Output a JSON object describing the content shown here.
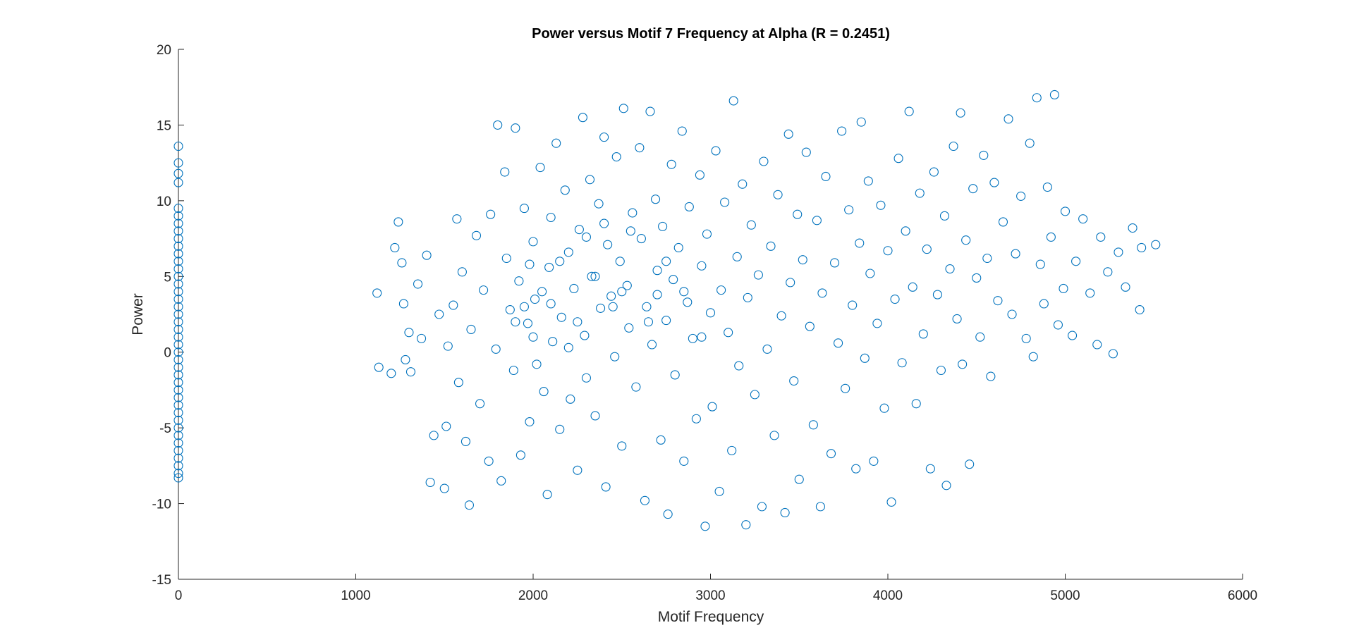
{
  "chart_data": {
    "type": "scatter",
    "title": "Power versus Motif 7 Frequency at Alpha (R = 0.2451)",
    "xlabel": "Motif Frequency",
    "ylabel": "Power",
    "color": "#0072bd",
    "xlim": [
      0,
      6000
    ],
    "ylim": [
      -15,
      20
    ],
    "xticks": [
      0,
      1000,
      2000,
      3000,
      4000,
      5000,
      6000
    ],
    "yticks": [
      -15,
      -10,
      -5,
      0,
      5,
      10,
      15,
      20
    ],
    "x": [
      0,
      0,
      0,
      0,
      0,
      0,
      0,
      0,
      0,
      0,
      0,
      0,
      0,
      0,
      0,
      0,
      0,
      0,
      0,
      0,
      0,
      0,
      0,
      0,
      0,
      0,
      0,
      0,
      0,
      0,
      0,
      0,
      0,
      0,
      0,
      0,
      0,
      0,
      0,
      0,
      0,
      1120,
      1130,
      1200,
      1220,
      1240,
      1260,
      1270,
      1280,
      1300,
      1310,
      1350,
      1370,
      1400,
      1420,
      1440,
      1470,
      1500,
      1510,
      1520,
      1550,
      1570,
      1580,
      1600,
      1620,
      1640,
      1650,
      1680,
      1700,
      1720,
      1750,
      1760,
      1790,
      1800,
      1820,
      1840,
      1850,
      1870,
      1890,
      1900,
      1920,
      1930,
      1950,
      1970,
      1980,
      2000,
      2010,
      2020,
      2040,
      2060,
      2080,
      2090,
      2100,
      2110,
      2130,
      2150,
      2160,
      2180,
      2200,
      2210,
      2230,
      2250,
      2260,
      2280,
      2290,
      2300,
      2320,
      2330,
      2350,
      2370,
      2380,
      2400,
      2410,
      2420,
      2440,
      2460,
      2470,
      2490,
      2500,
      2510,
      2530,
      2540,
      2560,
      2580,
      2600,
      2610,
      2630,
      2640,
      2660,
      2670,
      2690,
      2700,
      2720,
      2730,
      2750,
      2760,
      2780,
      2790,
      2800,
      2820,
      2840,
      2850,
      2870,
      2880,
      2900,
      2920,
      2940,
      2950,
      2970,
      2980,
      3000,
      3010,
      3030,
      3050,
      3060,
      3080,
      3100,
      3120,
      3130,
      3150,
      3160,
      3180,
      3200,
      3210,
      3230,
      3250,
      3270,
      3290,
      3300,
      3320,
      3340,
      3360,
      3380,
      3400,
      3420,
      3440,
      3450,
      3470,
      3490,
      3500,
      3520,
      3540,
      3560,
      3580,
      3600,
      3620,
      3630,
      3650,
      3680,
      3700,
      3720,
      3740,
      3760,
      3780,
      3800,
      3820,
      3840,
      3850,
      3870,
      3890,
      3900,
      3920,
      3940,
      3960,
      3980,
      4000,
      4020,
      4040,
      4060,
      4080,
      4100,
      4120,
      4140,
      4160,
      4180,
      4200,
      4220,
      4240,
      4260,
      4280,
      4300,
      4320,
      4330,
      4350,
      4370,
      4390,
      4410,
      4420,
      4440,
      4460,
      4480,
      4500,
      4520,
      4540,
      4560,
      4580,
      4600,
      4620,
      4650,
      4680,
      4700,
      4720,
      4750,
      4780,
      4800,
      4820,
      4840,
      4860,
      4880,
      4900,
      4920,
      4940,
      4960,
      4990,
      5000,
      5040,
      5060,
      5100,
      5140,
      5180,
      5200,
      5240,
      5270,
      5300,
      5340,
      5380,
      5420,
      5430,
      5510,
      1950,
      2000,
      2050,
      2150,
      2250,
      2350,
      2450,
      2550,
      2650,
      2750,
      2850,
      2950,
      1900,
      2100,
      2300,
      2500,
      2700,
      2400,
      2200,
      1980
    ],
    "y": [
      13.6,
      12.5,
      11.8,
      11.2,
      9.5,
      9,
      8.5,
      8,
      7.5,
      7,
      6.5,
      6,
      5.5,
      5,
      4.5,
      4,
      3.5,
      3,
      2.5,
      2,
      1.5,
      1,
      0.5,
      0,
      -0.5,
      -1,
      -1.5,
      -2,
      -2.5,
      -3,
      -3.5,
      -4,
      -4.5,
      -5,
      -5.5,
      -6,
      -6.5,
      -7,
      -7.5,
      -8,
      -8.3,
      3.9,
      -1,
      -1.4,
      6.9,
      8.6,
      5.9,
      3.2,
      -0.5,
      1.3,
      -1.3,
      4.5,
      0.9,
      6.4,
      -8.6,
      -5.5,
      2.5,
      -9,
      -4.9,
      0.4,
      3.1,
      8.8,
      -2,
      5.3,
      -5.9,
      -10.1,
      1.5,
      7.7,
      -3.4,
      4.1,
      -7.2,
      9.1,
      0.2,
      15,
      -8.5,
      11.9,
      6.2,
      2.8,
      -1.2,
      14.8,
      4.7,
      -6.8,
      9.5,
      1.9,
      -4.6,
      7.3,
      3.5,
      -0.8,
      12.2,
      -2.6,
      -9.4,
      5.6,
      8.9,
      0.7,
      13.8,
      -5.1,
      2.3,
      10.7,
      6.6,
      -3.1,
      4.2,
      -7.8,
      8.1,
      15.5,
      1.1,
      -1.7,
      11.4,
      5,
      -4.2,
      9.8,
      2.9,
      14.2,
      -8.9,
      7.1,
      3.7,
      -0.3,
      12.9,
      6,
      -6.2,
      16.1,
      4.4,
      1.6,
      9.2,
      -2.3,
      13.5,
      7.5,
      -9.8,
      3,
      15.9,
      0.5,
      10.1,
      5.4,
      -5.8,
      8.3,
      2.1,
      -10.7,
      12.4,
      4.8,
      -1.5,
      6.9,
      14.6,
      -7.2,
      3.3,
      9.6,
      0.9,
      -4.4,
      11.7,
      5.7,
      -11.5,
      7.8,
      2.6,
      -3.6,
      13.3,
      -9.2,
      4.1,
      9.9,
      1.3,
      -6.5,
      16.6,
      6.3,
      -0.9,
      11.1,
      -11.4,
      3.6,
      8.4,
      -2.8,
      5.1,
      -10.2,
      12.6,
      0.2,
      7,
      -5.5,
      10.4,
      2.4,
      -10.6,
      14.4,
      4.6,
      -1.9,
      9.1,
      -8.4,
      6.1,
      13.2,
      1.7,
      -4.8,
      8.7,
      -10.2,
      3.9,
      11.6,
      -6.7,
      5.9,
      0.6,
      14.6,
      -2.4,
      9.4,
      3.1,
      -7.7,
      7.2,
      15.2,
      -0.4,
      11.3,
      5.2,
      -7.2,
      1.9,
      9.7,
      -3.7,
      6.7,
      -9.9,
      3.5,
      12.8,
      -0.7,
      8,
      15.9,
      4.3,
      -3.4,
      10.5,
      1.2,
      6.8,
      -7.7,
      11.9,
      3.8,
      -1.2,
      9,
      -8.8,
      5.5,
      13.6,
      2.2,
      15.8,
      -0.8,
      7.4,
      -7.4,
      10.8,
      4.9,
      1,
      13,
      6.2,
      -1.6,
      11.2,
      3.4,
      8.6,
      15.4,
      2.5,
      6.5,
      10.3,
      0.9,
      13.8,
      -0.3,
      16.8,
      5.8,
      3.2,
      10.9,
      7.6,
      17,
      1.8,
      4.2,
      9.3,
      1.1,
      6,
      8.8,
      3.9,
      0.5,
      7.6,
      5.3,
      -0.1,
      6.6,
      4.3,
      8.2,
      2.8,
      6.9,
      7.1,
      3,
      1,
      4,
      6,
      2,
      5,
      3,
      8,
      2,
      6,
      4,
      1,
      2,
      3.2,
      7.6,
      4,
      3.8,
      8.5,
      0.3,
      5.8
    ]
  }
}
